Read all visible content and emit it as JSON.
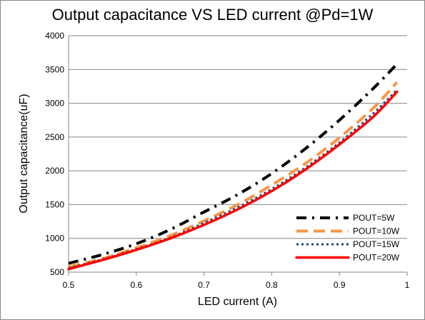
{
  "chart_data": {
    "type": "line",
    "title": "Output capacitance VS LED current @Pd=1W",
    "xlabel": "LED current (A)",
    "ylabel": "Output capacitance(uF)",
    "xlim": [
      0.5,
      1.0
    ],
    "ylim": [
      500,
      4000
    ],
    "x_ticks": [
      0.5,
      0.6,
      0.7,
      0.8,
      0.9,
      1.0
    ],
    "x_tick_labels": [
      "0.5",
      "0.6",
      "0.7",
      "0.8",
      "0.9",
      "1"
    ],
    "y_ticks": [
      500,
      1000,
      1500,
      2000,
      2500,
      3000,
      3500,
      4000
    ],
    "y_tick_labels": [
      "500",
      "1000",
      "1500",
      "2000",
      "2500",
      "3000",
      "3500",
      "4000"
    ],
    "grid": "horizontal",
    "legend_position": "bottom-right",
    "x": [
      0.5,
      0.55,
      0.6,
      0.65,
      0.7,
      0.75,
      0.8,
      0.85,
      0.9,
      0.95,
      0.985
    ],
    "series": [
      {
        "name": "POUT=5W",
        "color": "#000000",
        "dash": "dash-dot",
        "values": [
          630,
          760,
          920,
          1130,
          1390,
          1650,
          1960,
          2330,
          2750,
          3220,
          3580
        ]
      },
      {
        "name": "POUT=10W",
        "color": "#F79646",
        "dash": "dash",
        "values": [
          580,
          700,
          860,
          1040,
          1260,
          1500,
          1790,
          2110,
          2490,
          2930,
          3310
        ]
      },
      {
        "name": "POUT=15W",
        "color": "#1F497D",
        "dash": "dot",
        "values": [
          560,
          690,
          840,
          1010,
          1230,
          1460,
          1730,
          2050,
          2420,
          2850,
          3200
        ]
      },
      {
        "name": "POUT=20W",
        "color": "#FF0000",
        "dash": "solid",
        "values": [
          545,
          680,
          830,
          1000,
          1200,
          1430,
          1700,
          2020,
          2390,
          2800,
          3170
        ]
      }
    ]
  }
}
